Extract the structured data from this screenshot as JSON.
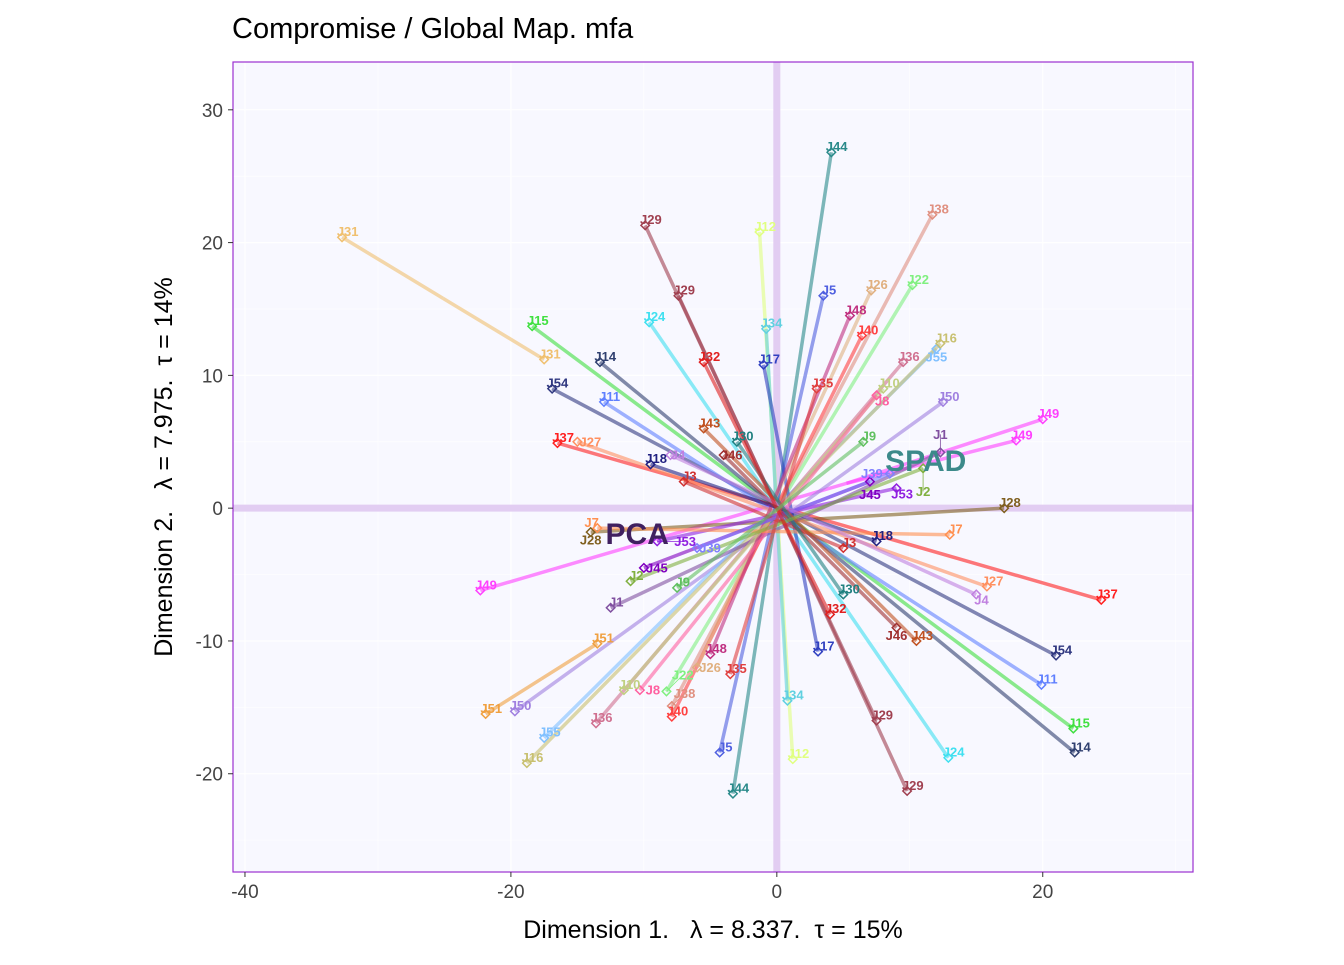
{
  "chart_data": {
    "type": "scatter",
    "title": "Compromise / Global Map. mfa",
    "xlabel": "Dimension 1.   λ = 8.337.  τ = 15%",
    "ylabel": "Dimension 2.   λ = 7.975.  τ = 14%",
    "xlim": [
      -40.9,
      31.3
    ],
    "ylim": [
      -27.4,
      33.6
    ],
    "xticks": [
      -40,
      -20,
      0,
      20
    ],
    "yticks": [
      -20,
      -10,
      0,
      10,
      20,
      30
    ],
    "grid": true,
    "colors": {
      "frame": "#9b30d0",
      "panel": "#f8f8ff",
      "origin": "#e2cdf2",
      "grid": "#ffffff"
    },
    "group_labels": [
      {
        "label": "SPAD",
        "x": 11.2,
        "y": 2.8,
        "color": "#3c8a8a"
      },
      {
        "label": "PCA",
        "x": -10.5,
        "y": -2.7,
        "color": "#402060"
      }
    ],
    "stars": [
      {
        "label": "J31",
        "color": "#f0c070",
        "points": [
          [
            -32.7,
            20.4
          ],
          [
            -17.5,
            11.2
          ]
        ]
      },
      {
        "label": "J44",
        "color": "#2a8a8a",
        "points": [
          [
            4.1,
            26.8
          ],
          [
            -3.3,
            -21.5
          ]
        ]
      },
      {
        "label": "J29",
        "color": "#a04050",
        "points": [
          [
            -9.9,
            21.3
          ],
          [
            9.8,
            -21.3
          ],
          [
            -7.4,
            16.0
          ],
          [
            7.5,
            -16.0
          ]
        ]
      },
      {
        "label": "J38",
        "color": "#e09080",
        "points": [
          [
            11.7,
            22.1
          ],
          [
            -7.9,
            -14.9
          ]
        ]
      },
      {
        "label": "J22",
        "color": "#80f080",
        "points": [
          [
            10.2,
            16.8
          ],
          [
            -8.3,
            -13.8
          ]
        ]
      },
      {
        "label": "J12",
        "color": "#e0ff80",
        "points": [
          [
            -1.3,
            20.8
          ],
          [
            1.2,
            -18.9
          ]
        ]
      },
      {
        "label": "J15",
        "color": "#40e040",
        "points": [
          [
            -18.4,
            13.7
          ],
          [
            22.3,
            -16.6
          ]
        ]
      },
      {
        "label": "J54",
        "color": "#303880",
        "points": [
          [
            -16.9,
            9.0
          ],
          [
            21.0,
            -11.1
          ]
        ]
      },
      {
        "label": "J37",
        "color": "#ff2020",
        "points": [
          [
            -16.5,
            4.9
          ],
          [
            24.4,
            -6.9
          ]
        ]
      },
      {
        "label": "J49",
        "color": "#ff40ff",
        "points": [
          [
            -22.3,
            -6.2
          ],
          [
            20.0,
            6.7
          ],
          [
            18.0,
            5.1
          ]
        ]
      },
      {
        "label": "J51",
        "color": "#f0a040",
        "points": [
          [
            -21.9,
            -15.5
          ],
          [
            -13.5,
            -10.2
          ]
        ]
      },
      {
        "label": "J50",
        "color": "#a080e0",
        "points": [
          [
            -19.7,
            -15.3
          ],
          [
            12.5,
            8.0
          ]
        ]
      },
      {
        "label": "J55",
        "color": "#80c0ff",
        "points": [
          [
            -17.5,
            -17.3
          ],
          [
            12.0,
            12.0
          ]
        ]
      },
      {
        "label": "J16",
        "color": "#c8c070",
        "points": [
          [
            -18.8,
            -19.2
          ],
          [
            12.3,
            12.4
          ]
        ]
      },
      {
        "label": "J14",
        "color": "#304070",
        "points": [
          [
            -13.3,
            11.0
          ],
          [
            22.4,
            -18.4
          ]
        ]
      },
      {
        "label": "J24",
        "color": "#40e0f0",
        "points": [
          [
            -9.6,
            14.0
          ],
          [
            12.9,
            -18.8
          ]
        ]
      },
      {
        "label": "J28",
        "color": "#806020",
        "points": [
          [
            17.1,
            0.0
          ],
          [
            -14.0,
            -1.8
          ]
        ]
      },
      {
        "label": "J40",
        "color": "#ff4040",
        "points": [
          [
            6.4,
            13.0
          ],
          [
            -7.9,
            -15.7
          ]
        ]
      },
      {
        "label": "J11",
        "color": "#6080ff",
        "points": [
          [
            19.9,
            -13.3
          ],
          [
            -13.0,
            8.0
          ]
        ]
      },
      {
        "label": "J27",
        "color": "#ff9060",
        "points": [
          [
            15.8,
            -5.9
          ],
          [
            -15.0,
            5.0
          ]
        ]
      },
      {
        "label": "J5",
        "color": "#5060e0",
        "points": [
          [
            -4.3,
            -18.4
          ],
          [
            3.5,
            16.0
          ]
        ]
      },
      {
        "label": "J34",
        "color": "#60d0e0",
        "points": [
          [
            0.8,
            -14.5
          ],
          [
            -0.8,
            13.5
          ]
        ]
      },
      {
        "label": "J17",
        "color": "#3040c0",
        "points": [
          [
            3.1,
            -10.8
          ],
          [
            -1.0,
            10.8
          ]
        ]
      },
      {
        "label": "J36",
        "color": "#d07090",
        "points": [
          [
            -13.6,
            -16.2
          ],
          [
            9.5,
            11.0
          ]
        ]
      },
      {
        "label": "J1",
        "color": "#8050a0",
        "points": [
          [
            12.3,
            4.2
          ],
          [
            -12.5,
            -7.5
          ]
        ]
      },
      {
        "label": "J26",
        "color": "#e0b080",
        "points": [
          [
            7.1,
            16.4
          ],
          [
            -6.0,
            -12.0
          ]
        ]
      },
      {
        "label": "J48",
        "color": "#c03080",
        "points": [
          [
            5.5,
            14.5
          ],
          [
            -5.0,
            -11.0
          ]
        ]
      },
      {
        "label": "J10",
        "color": "#c0d080",
        "points": [
          [
            -11.5,
            -13.7
          ],
          [
            8.0,
            9.0
          ]
        ]
      },
      {
        "label": "J8",
        "color": "#ff60a0",
        "points": [
          [
            -10.3,
            -13.7
          ],
          [
            7.5,
            8.5
          ]
        ]
      },
      {
        "label": "J53",
        "color": "#9020e0",
        "points": [
          [
            9.0,
            1.5
          ],
          [
            -9.0,
            -2.5
          ]
        ]
      },
      {
        "label": "J18",
        "color": "#202080",
        "points": [
          [
            -9.5,
            3.3
          ],
          [
            7.5,
            -2.5
          ]
        ]
      },
      {
        "label": "J7",
        "color": "#ff9050",
        "points": [
          [
            -13.5,
            -1.5
          ],
          [
            13.0,
            -2.0
          ]
        ]
      },
      {
        "label": "J45",
        "color": "#8000c0",
        "points": [
          [
            -10.0,
            -4.5
          ],
          [
            7.0,
            2.0
          ]
        ]
      },
      {
        "label": "J3",
        "color": "#d03030",
        "points": [
          [
            -7.0,
            2.0
          ],
          [
            5.0,
            -3.0
          ]
        ]
      },
      {
        "label": "J39",
        "color": "#8080ff",
        "points": [
          [
            8.5,
            2.6
          ],
          [
            -6.0,
            -3.0
          ]
        ]
      },
      {
        "label": "J46",
        "color": "#a03030",
        "points": [
          [
            9.0,
            -9.0
          ],
          [
            -4.0,
            4.0
          ]
        ]
      },
      {
        "label": "J43",
        "color": "#c05020",
        "points": [
          [
            10.5,
            -10.0
          ],
          [
            -5.5,
            6.0
          ]
        ]
      },
      {
        "label": "J4",
        "color": "#c080e0",
        "points": [
          [
            15.0,
            -6.5
          ],
          [
            -8.0,
            4.0
          ]
        ]
      },
      {
        "label": "J30",
        "color": "#208080",
        "points": [
          [
            5.0,
            -6.5
          ],
          [
            -3.0,
            5.0
          ]
        ]
      },
      {
        "label": "J2",
        "color": "#80b040",
        "points": [
          [
            11.0,
            3.0
          ],
          [
            -11.0,
            -5.5
          ]
        ]
      },
      {
        "label": "J35",
        "color": "#e04040",
        "points": [
          [
            -3.5,
            -12.5
          ],
          [
            3.0,
            9.0
          ]
        ]
      },
      {
        "label": "J32",
        "color": "#e02020",
        "points": [
          [
            -5.5,
            11.0
          ],
          [
            4.0,
            -8.0
          ]
        ]
      },
      {
        "label": "J9",
        "color": "#60c060",
        "points": [
          [
            -7.5,
            -6.0
          ],
          [
            6.5,
            5.0
          ]
        ]
      }
    ]
  }
}
